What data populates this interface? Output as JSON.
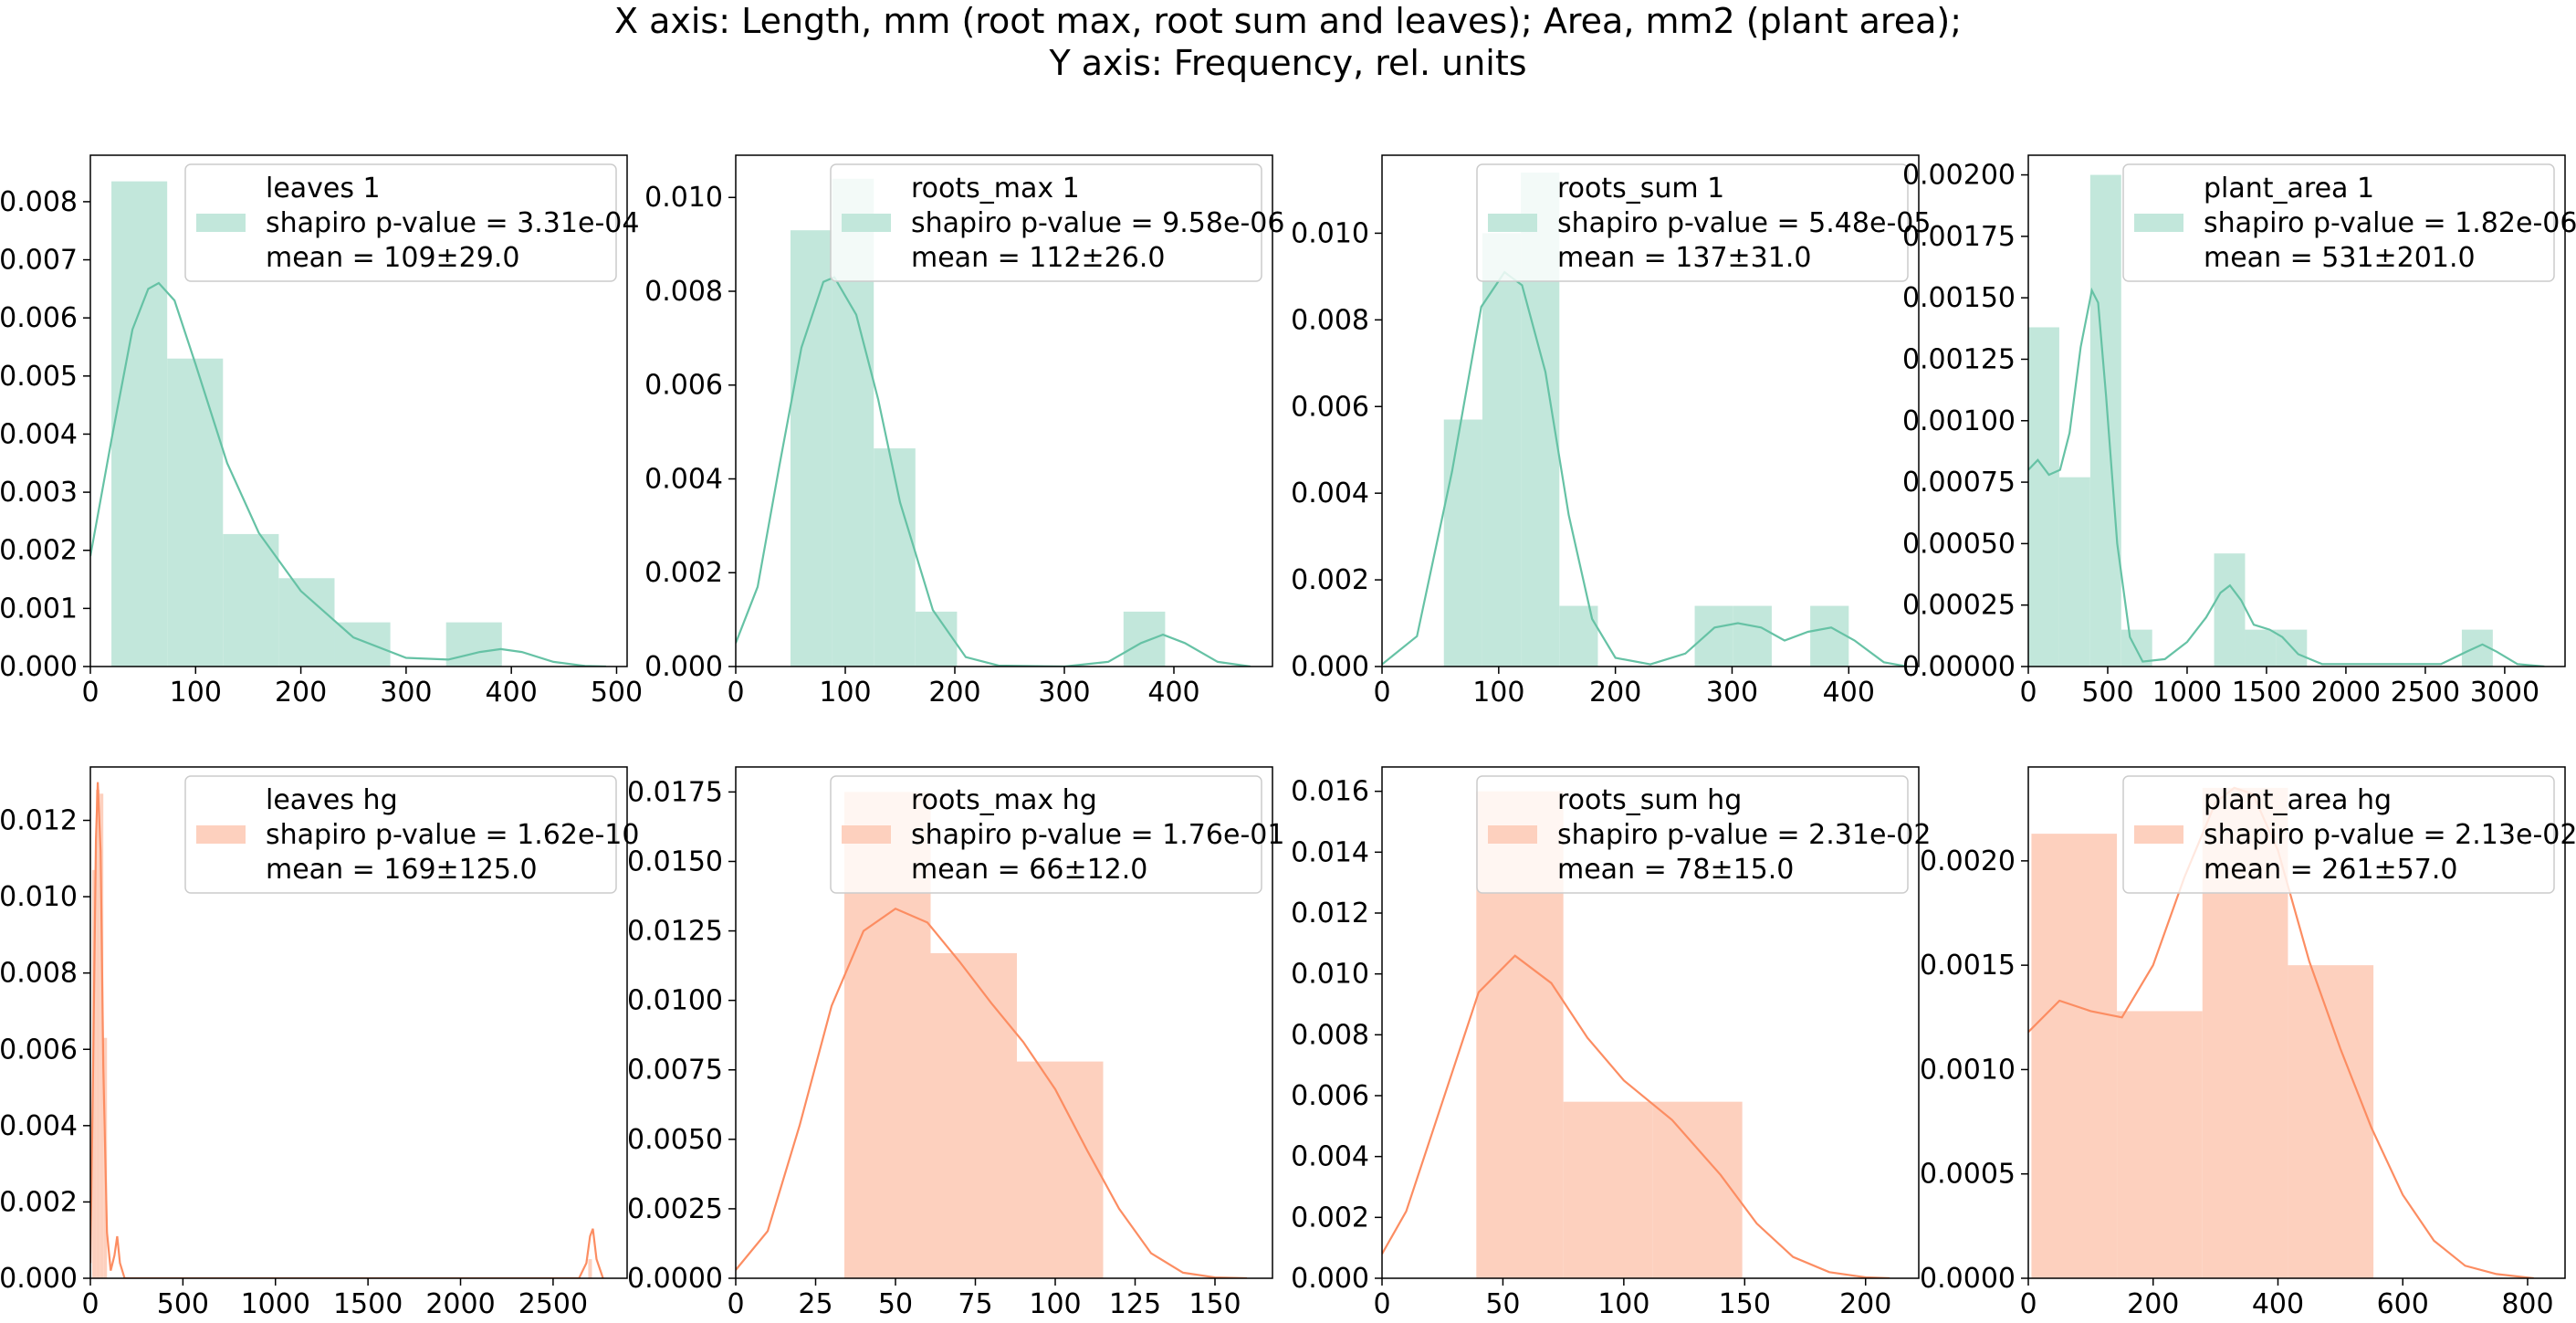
{
  "title_line1": "X axis: Length, mm (root max, root sum and leaves); Area, mm2 (plant area);",
  "title_line2": "Y axis: Frequency, rel. units",
  "colors": {
    "group1": "#66c2a5",
    "group1_fill": "#c2e7db",
    "group2": "#fc8d62",
    "group2_fill": "#fdd0be"
  },
  "chart_data": [
    {
      "type": "bar",
      "name": "leaves 1",
      "group": 1,
      "legend": [
        "leaves 1",
        "shapiro p-value = 3.31e-04",
        "mean = 109±29.0"
      ],
      "xlim": [
        0,
        510
      ],
      "ylim": [
        0,
        0.0088
      ],
      "xticks": [
        0,
        100,
        200,
        300,
        400,
        500
      ],
      "xtick_labels": [
        "0",
        "100",
        "200",
        "300",
        "400",
        "500"
      ],
      "yticks": [
        0,
        0.001,
        0.002,
        0.003,
        0.004,
        0.005,
        0.006,
        0.007,
        0.008
      ],
      "ytick_labels": [
        "0.000",
        "0.001",
        "0.002",
        "0.003",
        "0.004",
        "0.005",
        "0.006",
        "0.007",
        "0.008"
      ],
      "bins": [
        [
          20,
          73,
          0.00835
        ],
        [
          73,
          126,
          0.0053
        ],
        [
          126,
          179,
          0.00228
        ],
        [
          179,
          232,
          0.00152
        ],
        [
          232,
          285,
          0.00076
        ],
        [
          338,
          391,
          0.00076
        ]
      ],
      "kde": [
        [
          0,
          0.0019
        ],
        [
          20,
          0.0039
        ],
        [
          40,
          0.0058
        ],
        [
          55,
          0.0065
        ],
        [
          65,
          0.0066
        ],
        [
          80,
          0.0063
        ],
        [
          100,
          0.0052
        ],
        [
          130,
          0.0035
        ],
        [
          160,
          0.0023
        ],
        [
          200,
          0.0013
        ],
        [
          250,
          0.0005
        ],
        [
          300,
          0.00015
        ],
        [
          340,
          0.00012
        ],
        [
          370,
          0.00025
        ],
        [
          390,
          0.0003
        ],
        [
          410,
          0.00025
        ],
        [
          440,
          8e-05
        ],
        [
          470,
          1e-05
        ],
        [
          490,
          0
        ]
      ]
    },
    {
      "type": "bar",
      "name": "roots_max 1",
      "group": 1,
      "legend": [
        "roots_max 1",
        "shapiro p-value = 9.58e-06",
        "mean = 112±26.0"
      ],
      "xlim": [
        0,
        490
      ],
      "ylim": [
        0,
        0.0109
      ],
      "xticks": [
        0,
        100,
        200,
        300,
        400
      ],
      "xtick_labels": [
        "0",
        "100",
        "200",
        "300",
        "400"
      ],
      "yticks": [
        0,
        0.002,
        0.004,
        0.006,
        0.008,
        0.01
      ],
      "ytick_labels": [
        "0.000",
        "0.002",
        "0.004",
        "0.006",
        "0.008",
        "0.010"
      ],
      "bins": [
        [
          50,
          88,
          0.0093
        ],
        [
          88,
          126,
          0.0104
        ],
        [
          126,
          164,
          0.00465
        ],
        [
          164,
          202,
          0.00117
        ],
        [
          354,
          392,
          0.00117
        ]
      ],
      "kde": [
        [
          0,
          0.0005
        ],
        [
          20,
          0.0017
        ],
        [
          40,
          0.0043
        ],
        [
          60,
          0.0068
        ],
        [
          80,
          0.0082
        ],
        [
          90,
          0.0083
        ],
        [
          110,
          0.0075
        ],
        [
          130,
          0.0057
        ],
        [
          150,
          0.0035
        ],
        [
          180,
          0.0012
        ],
        [
          210,
          0.0002
        ],
        [
          240,
          2e-05
        ],
        [
          300,
          0
        ],
        [
          340,
          0.0001
        ],
        [
          370,
          0.0005
        ],
        [
          390,
          0.00068
        ],
        [
          410,
          0.0005
        ],
        [
          440,
          0.0001
        ],
        [
          470,
          0
        ]
      ]
    },
    {
      "type": "bar",
      "name": "roots_sum 1",
      "group": 1,
      "legend": [
        "roots_sum 1",
        "shapiro p-value = 5.48e-05",
        "mean = 137±31.0"
      ],
      "xlim": [
        0,
        460
      ],
      "ylim": [
        0,
        0.0118
      ],
      "xticks": [
        0,
        100,
        200,
        300,
        400
      ],
      "xtick_labels": [
        "0",
        "100",
        "200",
        "300",
        "400"
      ],
      "yticks": [
        0,
        0.002,
        0.004,
        0.006,
        0.008,
        0.01
      ],
      "ytick_labels": [
        "0.000",
        "0.002",
        "0.004",
        "0.006",
        "0.008",
        "0.010"
      ],
      "bins": [
        [
          53,
          86,
          0.0057
        ],
        [
          86,
          119,
          0.01
        ],
        [
          119,
          152,
          0.0114
        ],
        [
          152,
          185,
          0.0014
        ],
        [
          268,
          301,
          0.0014
        ],
        [
          301,
          334,
          0.0014
        ],
        [
          367,
          400,
          0.0014
        ]
      ],
      "kde": [
        [
          0,
          5e-05
        ],
        [
          30,
          0.0007
        ],
        [
          60,
          0.0045
        ],
        [
          85,
          0.0083
        ],
        [
          105,
          0.0091
        ],
        [
          120,
          0.0088
        ],
        [
          140,
          0.0068
        ],
        [
          160,
          0.0035
        ],
        [
          180,
          0.0011
        ],
        [
          200,
          0.0002
        ],
        [
          230,
          5e-05
        ],
        [
          260,
          0.0003
        ],
        [
          285,
          0.0009
        ],
        [
          305,
          0.001
        ],
        [
          325,
          0.0009
        ],
        [
          345,
          0.0006
        ],
        [
          365,
          0.0008
        ],
        [
          385,
          0.0009
        ],
        [
          405,
          0.0006
        ],
        [
          430,
          0.0001
        ],
        [
          450,
          0
        ]
      ]
    },
    {
      "type": "bar",
      "name": "plant_area 1",
      "group": 1,
      "legend": [
        "plant_area 1",
        "shapiro p-value = 1.82e-06",
        "mean = 531±201.0"
      ],
      "xlim": [
        0,
        3380
      ],
      "ylim": [
        0,
        0.00208
      ],
      "xticks": [
        0,
        500,
        1000,
        1500,
        2000,
        2500,
        3000
      ],
      "xtick_labels": [
        "0",
        "500",
        "1000",
        "1500",
        "2000",
        "2500",
        "3000"
      ],
      "yticks": [
        0,
        0.00025,
        0.0005,
        0.00075,
        0.001,
        0.00125,
        0.0015,
        0.00175,
        0.002
      ],
      "ytick_labels": [
        "0.00000",
        "0.00025",
        "0.00050",
        "0.00075",
        "0.00100",
        "0.00125",
        "0.00150",
        "0.00175",
        "0.00200"
      ],
      "bins": [
        [
          0,
          195,
          0.00138
        ],
        [
          195,
          390,
          0.00077
        ],
        [
          390,
          585,
          0.002
        ],
        [
          585,
          780,
          0.00015
        ],
        [
          1170,
          1365,
          0.00046
        ],
        [
          1365,
          1560,
          0.00015
        ],
        [
          1560,
          1755,
          0.00015
        ],
        [
          2730,
          2925,
          0.00015
        ]
      ],
      "kde": [
        [
          0,
          0.0008
        ],
        [
          60,
          0.00084
        ],
        [
          130,
          0.00078
        ],
        [
          200,
          0.0008
        ],
        [
          260,
          0.00095
        ],
        [
          330,
          0.0013
        ],
        [
          400,
          0.00153
        ],
        [
          440,
          0.00148
        ],
        [
          490,
          0.0011
        ],
        [
          560,
          0.0005
        ],
        [
          640,
          0.00012
        ],
        [
          720,
          2e-05
        ],
        [
          860,
          3e-05
        ],
        [
          1000,
          0.0001
        ],
        [
          1120,
          0.0002
        ],
        [
          1210,
          0.0003
        ],
        [
          1270,
          0.00033
        ],
        [
          1340,
          0.00027
        ],
        [
          1420,
          0.00017
        ],
        [
          1520,
          0.00015
        ],
        [
          1600,
          0.00012
        ],
        [
          1700,
          5e-05
        ],
        [
          1850,
          1e-05
        ],
        [
          2600,
          1e-05
        ],
        [
          2760,
          6e-05
        ],
        [
          2860,
          9e-05
        ],
        [
          2950,
          6e-05
        ],
        [
          3080,
          1e-05
        ],
        [
          3250,
          0
        ]
      ]
    },
    {
      "type": "bar",
      "name": "leaves hg",
      "group": 2,
      "legend": [
        "leaves hg",
        "shapiro p-value = 1.62e-10",
        "mean = 169±125.0"
      ],
      "xlim": [
        0,
        2900
      ],
      "ylim": [
        0,
        0.0134
      ],
      "xticks": [
        0,
        500,
        1000,
        1500,
        2000,
        2500
      ],
      "xtick_labels": [
        "0",
        "500",
        "1000",
        "1500",
        "2000",
        "2500"
      ],
      "yticks": [
        0,
        0.002,
        0.004,
        0.006,
        0.008,
        0.01,
        0.012
      ],
      "ytick_labels": [
        "0.000",
        "0.002",
        "0.004",
        "0.006",
        "0.008",
        "0.010",
        "0.012"
      ],
      "bins": [
        [
          10,
          30,
          0.0107
        ],
        [
          30,
          50,
          0.0128
        ],
        [
          50,
          70,
          0.0127
        ],
        [
          70,
          90,
          0.0063
        ],
        [
          2690,
          2710,
          0.0005
        ]
      ],
      "kde": [
        [
          0,
          0.0004
        ],
        [
          15,
          0.0055
        ],
        [
          30,
          0.0115
        ],
        [
          40,
          0.013
        ],
        [
          55,
          0.0112
        ],
        [
          70,
          0.0055
        ],
        [
          90,
          0.0012
        ],
        [
          110,
          0.0002
        ],
        [
          130,
          0.0006
        ],
        [
          145,
          0.0011
        ],
        [
          160,
          0.0004
        ],
        [
          185,
          0
        ],
        [
          2640,
          0
        ],
        [
          2680,
          0.0004
        ],
        [
          2700,
          0.0011
        ],
        [
          2715,
          0.0013
        ],
        [
          2735,
          0.0005
        ],
        [
          2770,
          0
        ]
      ]
    },
    {
      "type": "bar",
      "name": "roots_max hg",
      "group": 2,
      "legend": [
        "roots_max hg",
        "shapiro p-value = 1.76e-01",
        "mean = 66±12.0"
      ],
      "xlim": [
        0,
        168
      ],
      "ylim": [
        0,
        0.0184
      ],
      "xticks": [
        0,
        25,
        50,
        75,
        100,
        125,
        150
      ],
      "xtick_labels": [
        "0",
        "25",
        "50",
        "75",
        "100",
        "125",
        "150"
      ],
      "yticks": [
        0,
        0.0025,
        0.005,
        0.0075,
        0.01,
        0.0125,
        0.015,
        0.0175
      ],
      "ytick_labels": [
        "0.0000",
        "0.0025",
        "0.0050",
        "0.0075",
        "0.0100",
        "0.0125",
        "0.0150",
        "0.0175"
      ],
      "bins": [
        [
          34,
          61,
          0.0175
        ],
        [
          61,
          88,
          0.0117
        ],
        [
          88,
          115,
          0.0078
        ]
      ],
      "kde": [
        [
          0,
          0.0003
        ],
        [
          10,
          0.0017
        ],
        [
          20,
          0.0055
        ],
        [
          30,
          0.0098
        ],
        [
          40,
          0.0125
        ],
        [
          50,
          0.0133
        ],
        [
          60,
          0.0128
        ],
        [
          70,
          0.0114
        ],
        [
          80,
          0.0099
        ],
        [
          90,
          0.0085
        ],
        [
          100,
          0.0068
        ],
        [
          110,
          0.0046
        ],
        [
          120,
          0.0025
        ],
        [
          130,
          0.0009
        ],
        [
          140,
          0.0002
        ],
        [
          150,
          3e-05
        ],
        [
          160,
          0
        ]
      ]
    },
    {
      "type": "bar",
      "name": "roots_sum hg",
      "group": 2,
      "legend": [
        "roots_sum hg",
        "shapiro p-value = 2.31e-02",
        "mean = 78±15.0"
      ],
      "xlim": [
        0,
        222
      ],
      "ylim": [
        0,
        0.0168
      ],
      "xticks": [
        0,
        50,
        100,
        150,
        200
      ],
      "xtick_labels": [
        "0",
        "50",
        "100",
        "150",
        "200"
      ],
      "yticks": [
        0,
        0.002,
        0.004,
        0.006,
        0.008,
        0.01,
        0.012,
        0.014,
        0.016
      ],
      "ytick_labels": [
        "0.000",
        "0.002",
        "0.004",
        "0.006",
        "0.008",
        "0.010",
        "0.012",
        "0.014",
        "0.016"
      ],
      "bins": [
        [
          39,
          75,
          0.016
        ],
        [
          75,
          112,
          0.0058
        ],
        [
          112,
          149,
          0.0058
        ]
      ],
      "kde": [
        [
          0,
          0.0008
        ],
        [
          10,
          0.0022
        ],
        [
          25,
          0.0058
        ],
        [
          40,
          0.0094
        ],
        [
          55,
          0.0106
        ],
        [
          70,
          0.0097
        ],
        [
          85,
          0.0079
        ],
        [
          100,
          0.0065
        ],
        [
          120,
          0.0052
        ],
        [
          140,
          0.0034
        ],
        [
          155,
          0.0018
        ],
        [
          170,
          0.0007
        ],
        [
          185,
          0.0002
        ],
        [
          200,
          3e-05
        ],
        [
          210,
          0
        ]
      ]
    },
    {
      "type": "bar",
      "name": "plant_area hg",
      "group": 2,
      "legend": [
        "plant_area hg",
        "shapiro p-value = 2.13e-02",
        "mean = 261±57.0"
      ],
      "xlim": [
        0,
        860
      ],
      "ylim": [
        0,
        0.00245
      ],
      "xticks": [
        0,
        200,
        400,
        600,
        800
      ],
      "xtick_labels": [
        "0",
        "200",
        "400",
        "600",
        "800"
      ],
      "yticks": [
        0,
        0.0005,
        0.001,
        0.0015,
        0.002
      ],
      "ytick_labels": [
        "0.0000",
        "0.0005",
        "0.0010",
        "0.0015",
        "0.0020"
      ],
      "bins": [
        [
          5,
          142,
          0.00213
        ],
        [
          142,
          279,
          0.00128
        ],
        [
          279,
          416,
          0.00235
        ],
        [
          416,
          553,
          0.0015
        ]
      ],
      "kde": [
        [
          0,
          0.00118
        ],
        [
          50,
          0.00133
        ],
        [
          100,
          0.00128
        ],
        [
          150,
          0.00125
        ],
        [
          200,
          0.0015
        ],
        [
          250,
          0.00192
        ],
        [
          300,
          0.00228
        ],
        [
          330,
          0.00235
        ],
        [
          360,
          0.00232
        ],
        [
          400,
          0.00205
        ],
        [
          450,
          0.00152
        ],
        [
          500,
          0.0011
        ],
        [
          550,
          0.00072
        ],
        [
          600,
          0.0004
        ],
        [
          650,
          0.00018
        ],
        [
          700,
          6e-05
        ],
        [
          750,
          2e-05
        ],
        [
          810,
          0
        ]
      ]
    }
  ]
}
